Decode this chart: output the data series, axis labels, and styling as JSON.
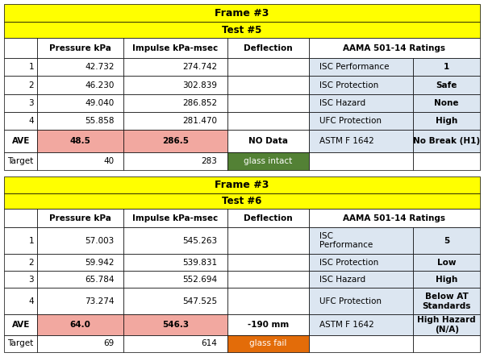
{
  "title": "Frame #3",
  "fig_bg": "#ffffff",
  "table_border": "#000000",
  "yellow_bg": "#ffff00",
  "yellow_text": "#000000",
  "header_bg": "#ffffff",
  "light_blue_bg": "#dce6f1",
  "pink_bg": "#f2a8a0",
  "green_bg": "#538135",
  "orange_bg": "#e36c09",
  "white_bg": "#ffffff",
  "table1": {
    "frame_title": "Frame #3",
    "test_title": "Test #5",
    "col_headers": [
      "",
      "Pressure kPa",
      "Impulse kPa-msec",
      "Deflection",
      "AAMA 501-14 Ratings",
      ""
    ],
    "rows": [
      [
        "1",
        "42.732",
        "274.742",
        "",
        "ISC Performance",
        "1"
      ],
      [
        "2",
        "46.230",
        "302.839",
        "",
        "ISC Protection",
        "Safe"
      ],
      [
        "3",
        "49.040",
        "286.852",
        "",
        "ISC Hazard",
        "None"
      ],
      [
        "4",
        "55.858",
        "281.470",
        "",
        "UFC Protection",
        "High"
      ],
      [
        "AVE",
        "48.5",
        "286.5",
        "NO Data",
        "ASTM F 1642",
        "No Break (H1)"
      ],
      [
        "Target",
        "40",
        "283",
        "glass intact",
        "",
        ""
      ]
    ]
  },
  "table2": {
    "frame_title": "Frame #3",
    "test_title": "Test #6",
    "col_headers": [
      "",
      "Pressure kPa",
      "Impulse kPa-msec",
      "Deflection",
      "AAMA 501-14 Ratings",
      ""
    ],
    "rows": [
      [
        "1",
        "57.003",
        "545.263",
        "",
        "ISC\nPerformance",
        "5"
      ],
      [
        "2",
        "59.942",
        "539.831",
        "",
        "ISC Protection",
        "Low"
      ],
      [
        "3",
        "65.784",
        "552.694",
        "",
        "ISC Hazard",
        "High"
      ],
      [
        "4",
        "73.274",
        "547.525",
        "",
        "UFC Protection",
        "Below AT\nStandards"
      ],
      [
        "AVE",
        "64.0",
        "546.3",
        "-190 mm",
        "ASTM F 1642",
        "High Hazard (N/A)"
      ],
      [
        "Target",
        "69",
        "614",
        "glass fail",
        "",
        ""
      ]
    ]
  }
}
